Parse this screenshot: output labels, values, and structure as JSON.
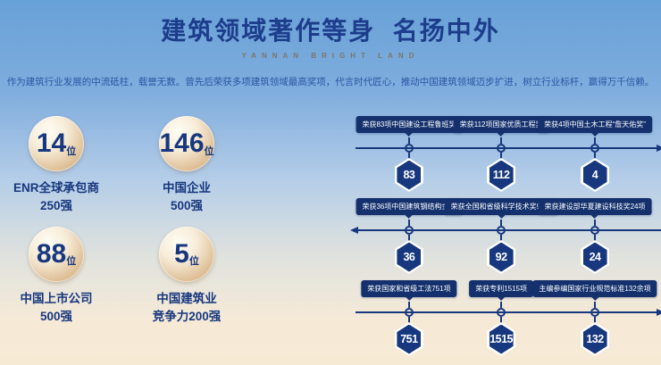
{
  "header": {
    "title": "建筑领域著作等身  名扬中外",
    "subtitle": "YANNAN BRIGHT LAND"
  },
  "intro": "作为建筑行业发展的中流砥柱，载誉无数。曾先后荣获多项建筑领域最高奖项，代言时代匠心，推动中国建筑领域迈步扩进，树立行业标杆，赢得万千信赖。",
  "stats": [
    {
      "value": "14",
      "unit": "位",
      "label_line1": "ENR全球承包商",
      "label_line2": "250强"
    },
    {
      "value": "146",
      "unit": "位",
      "label_line1": "中国企业",
      "label_line2": "500强"
    },
    {
      "value": "88",
      "unit": "位",
      "label_line1": "中国上市公司",
      "label_line2": "500强"
    },
    {
      "value": "5",
      "unit": "位",
      "label_line1": "中国建筑业",
      "label_line2": "竞争力200强"
    }
  ],
  "timeline": {
    "rows": [
      {
        "direction": "right",
        "items": [
          {
            "label": "荣获83项中国建设工程鲁班奖",
            "value": "83"
          },
          {
            "label": "荣获112项国家优质工程奖",
            "value": "112"
          },
          {
            "label": "荣获4项中国土木工程“詹天佑奖”",
            "value": "4"
          }
        ]
      },
      {
        "direction": "left",
        "items": [
          {
            "label": "荣获36项中国建筑钢结构金奖",
            "value": "36"
          },
          {
            "label": "荣获全国和省级科学技术奖92项",
            "value": "92"
          },
          {
            "label": "荣获建设部华夏建设科技奖24项",
            "value": "24"
          }
        ]
      },
      {
        "direction": "right",
        "items": [
          {
            "label": "荣获国家和省级工法751项",
            "value": "751"
          },
          {
            "label": "荣获专利1515项",
            "value": "1515"
          },
          {
            "label": "主编参编国家行业规范标准132余项",
            "value": "132"
          }
        ]
      }
    ]
  },
  "colors": {
    "navy": "#17377e",
    "title_navy": "#1d3d8c",
    "gold_circle": "#cfa87b",
    "sky_top": "#68a1d7",
    "cream_bottom": "#f7ead5",
    "label_box": "#14316e"
  }
}
